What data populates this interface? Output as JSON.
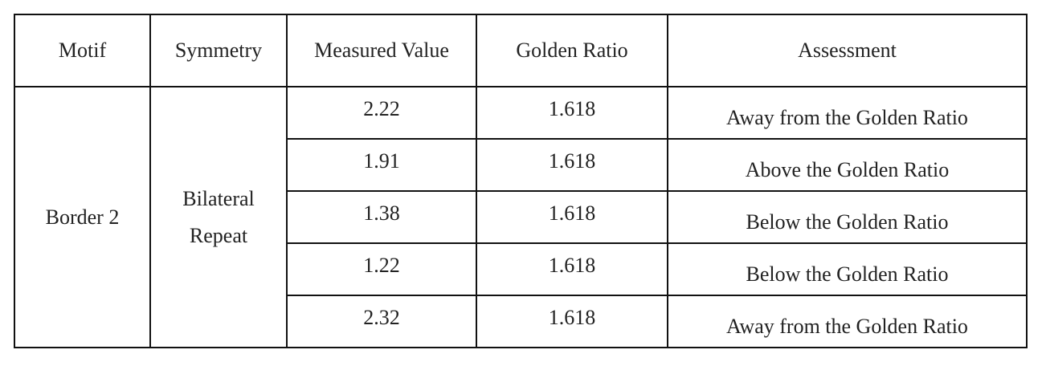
{
  "table": {
    "header": [
      "Motif",
      "Symmetry",
      "Measured Value",
      "Golden Ratio",
      "Assessment"
    ],
    "motif": "Border 2",
    "symmetry": "Bilateral Repeat",
    "rows": [
      [
        "2.22",
        "1.618",
        "Away from the Golden Ratio"
      ],
      [
        "1.91",
        "1.618",
        "Above the Golden Ratio"
      ],
      [
        "1.38",
        "1.618",
        "Below the Golden Ratio"
      ],
      [
        "1.22",
        "1.618",
        "Below the Golden Ratio"
      ],
      [
        "2.32",
        "1.618",
        "Away from the Golden Ratio"
      ]
    ]
  }
}
